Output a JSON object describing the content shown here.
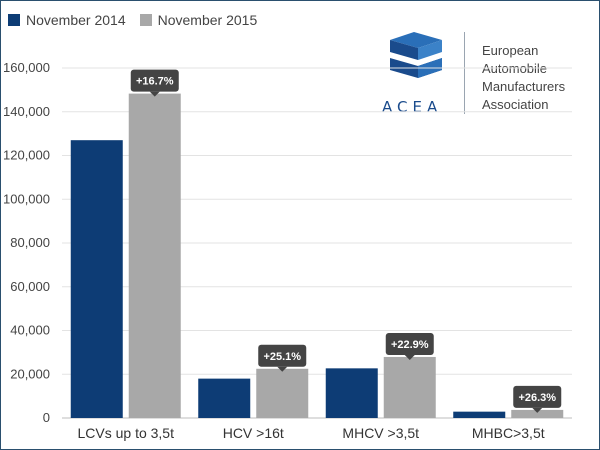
{
  "legend": [
    {
      "label": "November 2014",
      "color": "#0d3c75"
    },
    {
      "label": "November 2015",
      "color": "#a8a8a8"
    }
  ],
  "logo": {
    "acronym": "ACEA",
    "name_lines": [
      "European",
      "Automobile",
      "Manufacturers",
      "Association"
    ],
    "icon": "acea-cube-logo-icon"
  },
  "colors": {
    "gridline": "#e3e3e3",
    "callout_bg": "#444444"
  },
  "chart_data": {
    "type": "bar",
    "categories": [
      "LCVs up to 3,5t",
      "HCV >16t",
      "MHCV >3,5t",
      "MHBC>3,5t"
    ],
    "series": [
      {
        "name": "November 2014",
        "color": "#0d3c75",
        "values": [
          127000,
          18000,
          22700,
          2900
        ]
      },
      {
        "name": "November 2015",
        "color": "#a8a8a8",
        "values": [
          148300,
          22500,
          27900,
          3700
        ]
      }
    ],
    "annotations": [
      "+16.7%",
      "+25.1%",
      "+22.9%",
      "+26.3%"
    ],
    "yticks": [
      "0",
      "20,000",
      "40,000",
      "60,000",
      "80,000",
      "100,000",
      "120,000",
      "140,000",
      "160,000"
    ],
    "ylim": [
      0,
      160000
    ],
    "grid": true,
    "legend_position": "top-left",
    "title": "",
    "xlabel": "",
    "ylabel": ""
  }
}
